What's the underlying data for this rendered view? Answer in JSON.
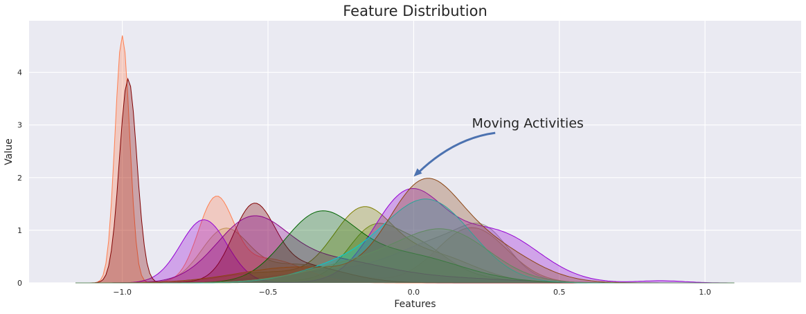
{
  "chart_data": {
    "type": "area",
    "subtype": "kde-density",
    "title": "Feature Distribution",
    "xlabel": "Features",
    "ylabel": "Value",
    "xlim": [
      -1.32,
      1.33
    ],
    "ylim": [
      0,
      4.98
    ],
    "xticks": [
      -1.0,
      -0.5,
      0.0,
      0.5,
      1.0
    ],
    "xtick_labels": [
      "−1.0",
      "−0.5",
      "0.0",
      "0.5",
      "1.0"
    ],
    "yticks": [
      0,
      1,
      2,
      3,
      4
    ],
    "ytick_labels": [
      "0",
      "1",
      "2",
      "3",
      "4"
    ],
    "grid": true,
    "background": "#eaeaf2",
    "annotation": {
      "text": "Moving Activities",
      "text_at": [
        0.2,
        2.95
      ],
      "arrow_from": [
        0.28,
        2.85
      ],
      "arrow_to": [
        0.0,
        2.02
      ],
      "arrow_color": "#4c72b0"
    },
    "series": [
      {
        "color": "#6b8e23",
        "components": [
          [
            0.005,
            0.1,
            0.55
          ],
          [
            -0.02,
            0.22,
            0.2
          ],
          [
            -0.15,
            0.08,
            0.75
          ]
        ]
      },
      {
        "color": "#808000",
        "components": [
          [
            -0.18,
            0.1,
            1.25
          ],
          [
            0.05,
            0.15,
            0.55
          ],
          [
            -0.5,
            0.15,
            0.2
          ]
        ]
      },
      {
        "color": "#aa9955",
        "components": [
          [
            -0.65,
            0.08,
            0.95
          ],
          [
            -0.4,
            0.15,
            0.35
          ],
          [
            0.2,
            0.12,
            1.05
          ]
        ]
      },
      {
        "color": "#999999",
        "components": [
          [
            0.12,
            0.15,
            0.7
          ],
          [
            -0.2,
            0.25,
            0.25
          ],
          [
            0.25,
            0.08,
            0.55
          ]
        ]
      },
      {
        "color": "#ff7f50",
        "components": [
          [
            -1.0,
            0.025,
            4.7
          ],
          [
            -0.68,
            0.06,
            1.5
          ],
          [
            -0.5,
            0.12,
            0.45
          ]
        ]
      },
      {
        "color": "#9400d3",
        "components": [
          [
            -0.72,
            0.08,
            1.2
          ],
          [
            -0.02,
            0.12,
            1.65
          ],
          [
            0.28,
            0.15,
            0.95
          ],
          [
            0.85,
            0.08,
            0.04
          ]
        ]
      },
      {
        "color": "#800000",
        "components": [
          [
            -0.98,
            0.03,
            3.88
          ],
          [
            -0.55,
            0.07,
            1.3
          ],
          [
            -0.4,
            0.15,
            0.35
          ]
        ]
      },
      {
        "color": "#8b008b",
        "components": [
          [
            -0.56,
            0.12,
            1.12
          ],
          [
            -0.3,
            0.18,
            0.4
          ],
          [
            0.05,
            0.25,
            0.1
          ]
        ]
      },
      {
        "color": "#006400",
        "components": [
          [
            -0.33,
            0.12,
            1.15
          ],
          [
            -0.05,
            0.2,
            0.55
          ]
        ]
      },
      {
        "color": "#00ced1",
        "components": [
          [
            0.05,
            0.15,
            1.55
          ],
          [
            -0.25,
            0.15,
            0.3
          ]
        ]
      },
      {
        "color": "#8b4513",
        "components": [
          [
            0.03,
            0.12,
            1.7
          ],
          [
            0.25,
            0.15,
            0.7
          ],
          [
            -0.4,
            0.2,
            0.3
          ]
        ]
      },
      {
        "color": "#5f8a5f",
        "components": [
          [
            0.12,
            0.15,
            0.85
          ],
          [
            -0.15,
            0.2,
            0.4
          ]
        ]
      }
    ]
  }
}
